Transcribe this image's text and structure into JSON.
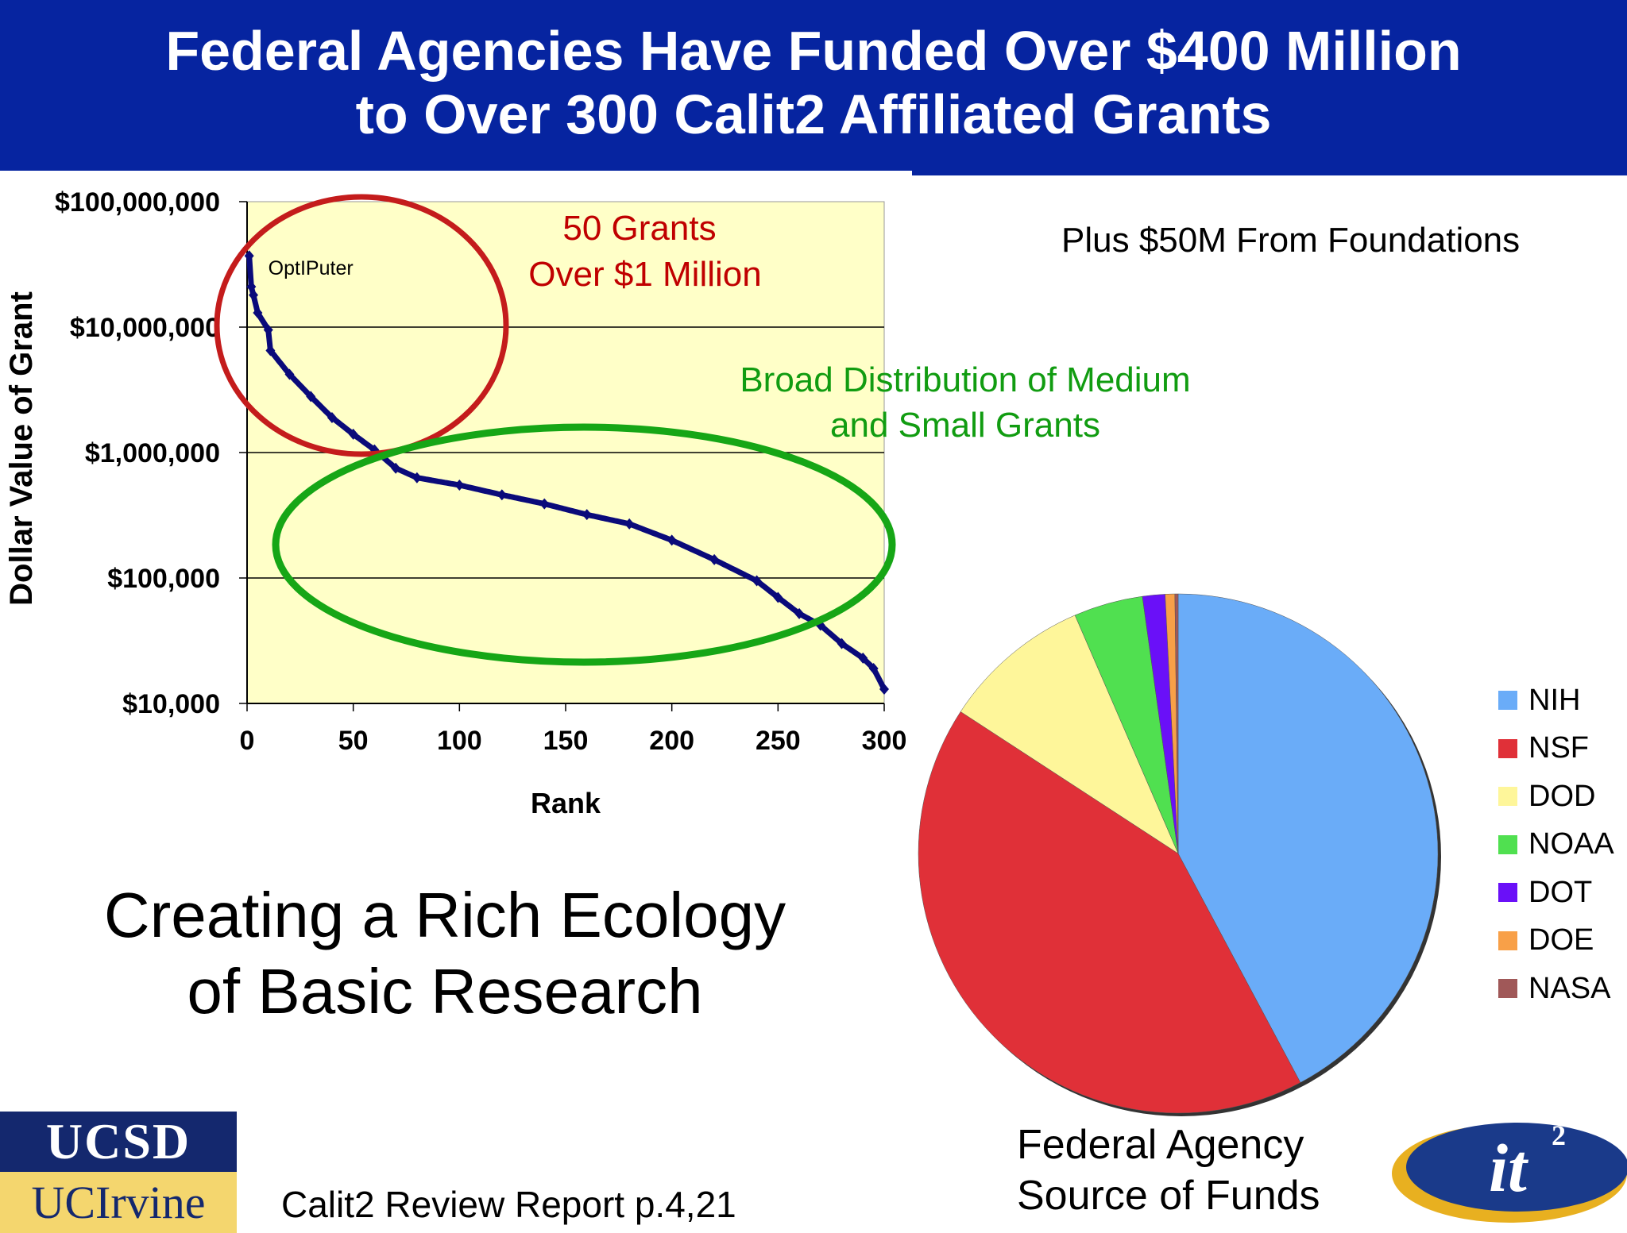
{
  "title": {
    "line1": "Federal Agencies Have Funded Over $400 Million",
    "line2": "to Over 300 Calit2 Affiliated Grants"
  },
  "foundations_note": "Plus $50M From Foundations",
  "ecology_caption": {
    "line1": "Creating a Rich Ecology",
    "line2": "of Basic Research"
  },
  "pie_caption": {
    "line1": "Federal Agency",
    "line2": "Source of Funds"
  },
  "report_reference": "Calit2 Review Report p.4,21",
  "logos": {
    "ucsd": "UCSD",
    "uci": "UCIrvine",
    "calit2": "it",
    "calit2_superscript": "2"
  },
  "colors": {
    "title_bar": "#0624a0",
    "plot_background": "#ffffc8",
    "series": "#0a0a7a",
    "red_annotation": "#c00000",
    "green_annotation": "#119c11"
  },
  "chart_data": [
    {
      "type": "scatter",
      "title": "",
      "xlabel": "Rank",
      "ylabel": "Dollar Value of Grant",
      "xlim": [
        0,
        300
      ],
      "ylim": [
        10000,
        100000000
      ],
      "yscale": "log",
      "grid": "horizontal",
      "x_ticks": [
        "0",
        "50",
        "100",
        "150",
        "200",
        "250",
        "300"
      ],
      "y_ticks": [
        "$100,000,000",
        "$10,000,000",
        "$1,000,000",
        "$100,000",
        "$10,000"
      ],
      "curve_points": [
        {
          "rank": 1,
          "value": 37000000
        },
        {
          "rank": 2,
          "value": 21000000
        },
        {
          "rank": 3,
          "value": 18000000
        },
        {
          "rank": 5,
          "value": 13000000
        },
        {
          "rank": 10,
          "value": 9500000
        },
        {
          "rank": 11,
          "value": 6500000
        },
        {
          "rank": 20,
          "value": 4200000
        },
        {
          "rank": 30,
          "value": 2800000
        },
        {
          "rank": 40,
          "value": 1900000
        },
        {
          "rank": 50,
          "value": 1400000
        },
        {
          "rank": 60,
          "value": 1050000
        },
        {
          "rank": 70,
          "value": 750000
        },
        {
          "rank": 80,
          "value": 630000
        },
        {
          "rank": 100,
          "value": 550000
        },
        {
          "rank": 120,
          "value": 460000
        },
        {
          "rank": 140,
          "value": 390000
        },
        {
          "rank": 160,
          "value": 320000
        },
        {
          "rank": 180,
          "value": 270000
        },
        {
          "rank": 200,
          "value": 200000
        },
        {
          "rank": 220,
          "value": 140000
        },
        {
          "rank": 240,
          "value": 95000
        },
        {
          "rank": 250,
          "value": 70000
        },
        {
          "rank": 260,
          "value": 52000
        },
        {
          "rank": 270,
          "value": 42000
        },
        {
          "rank": 280,
          "value": 30000
        },
        {
          "rank": 290,
          "value": 23000
        },
        {
          "rank": 295,
          "value": 19000
        },
        {
          "rank": 300,
          "value": 13000
        }
      ],
      "annotations": [
        {
          "text": "OptIPuter",
          "rank": 1,
          "value": 37000000
        },
        {
          "text_line1": "50 Grants",
          "text_line2": "Over $1 Million",
          "color": "red"
        },
        {
          "text_line1": "Broad Distribution of Medium",
          "text_line2": "and Small Grants",
          "color": "green"
        }
      ]
    },
    {
      "type": "pie",
      "title": "",
      "legend_position": "right",
      "slices": [
        {
          "name": "NIH",
          "value": 42.2,
          "color": "#6aacf8"
        },
        {
          "name": "NSF",
          "value": 42.0,
          "color": "#e03038"
        },
        {
          "name": "DOD",
          "value": 9.3,
          "color": "#fef69a"
        },
        {
          "name": "NOAA",
          "value": 4.3,
          "color": "#50e050"
        },
        {
          "name": "DOT",
          "value": 1.4,
          "color": "#6a10f8"
        },
        {
          "name": "DOE",
          "value": 0.6,
          "color": "#f8a048"
        },
        {
          "name": "NASA",
          "value": 0.2,
          "color": "#a05858"
        }
      ]
    }
  ]
}
